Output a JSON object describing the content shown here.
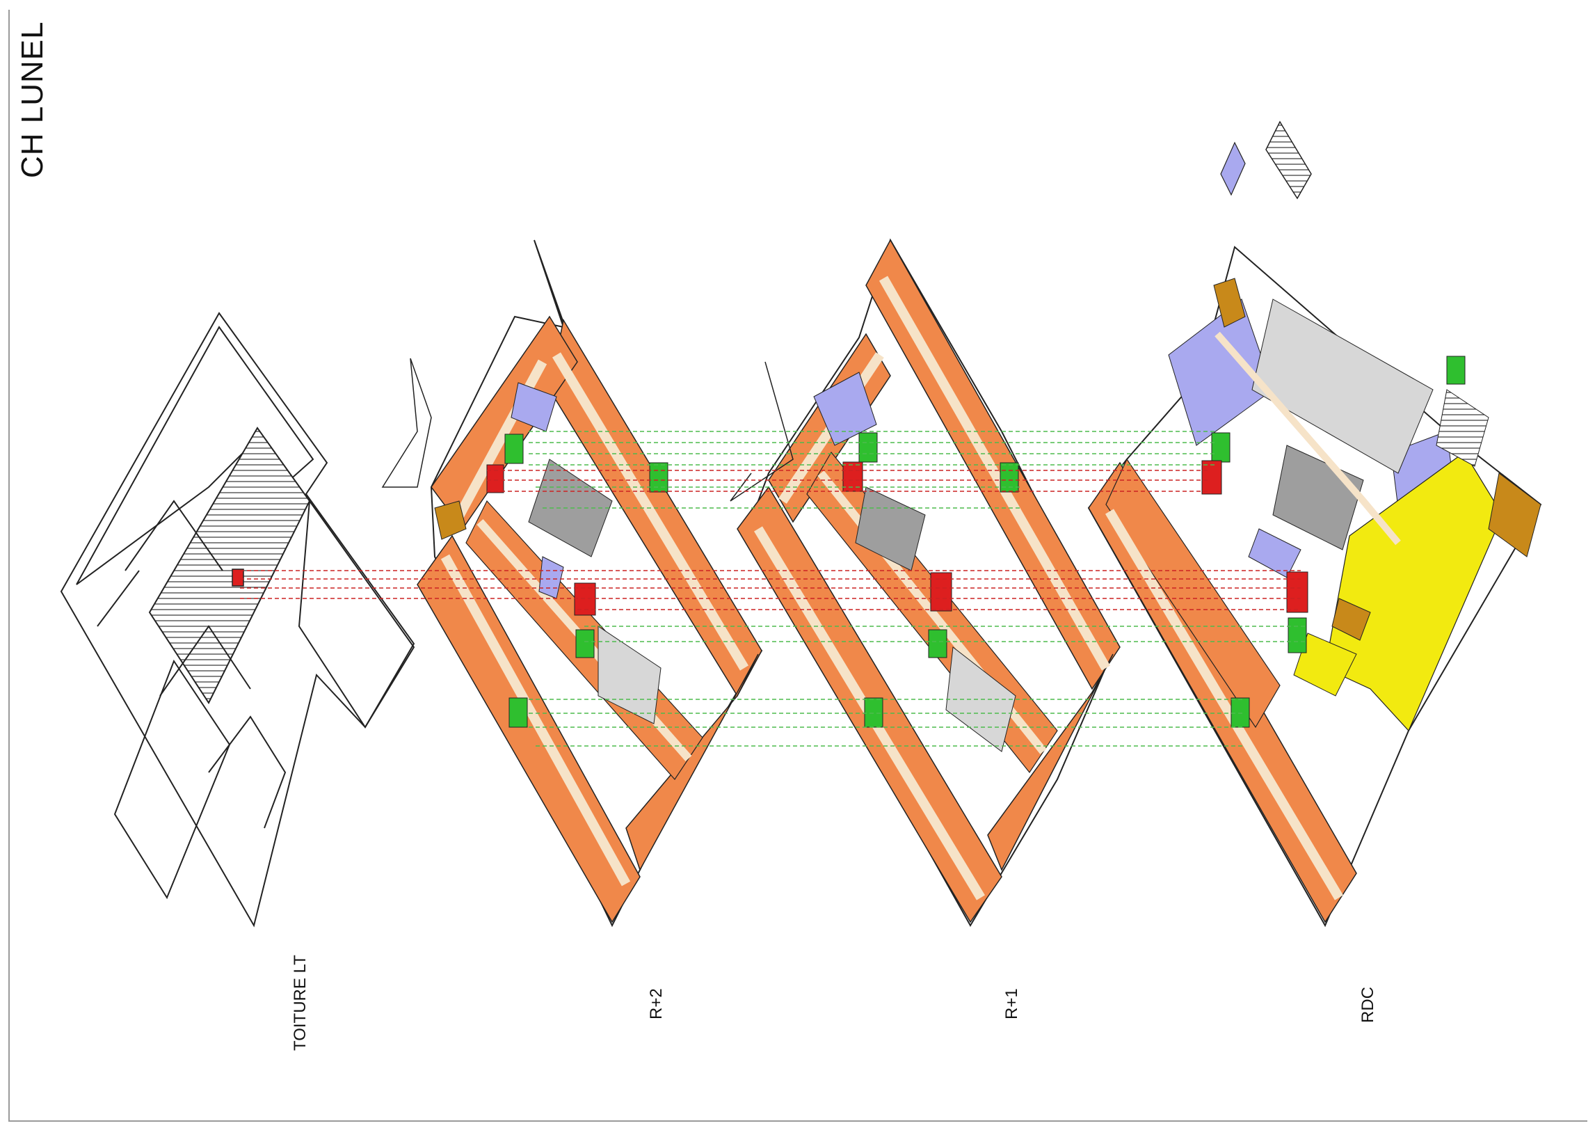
{
  "document": {
    "title": "CH LUNEL"
  },
  "levels": [
    {
      "id": "toiture",
      "label": "TOITURE LT"
    },
    {
      "id": "r2",
      "label": "R+2"
    },
    {
      "id": "r1",
      "label": "R+1"
    },
    {
      "id": "rdc",
      "label": "RDC"
    }
  ],
  "colors": {
    "rooms": "#f0884a",
    "corridor": "#f6e3c8",
    "services": "#a9a9ef",
    "technical": "#9e9e9e",
    "light_grey": "#d7d7d7",
    "yellow": "#f2ea10",
    "ochre": "#c8891a",
    "stair_green": "#2fbf2f",
    "stair_red": "#dd1f1f",
    "link_green": "#4dbb4d",
    "link_red": "#cc2222",
    "outline": "#222222"
  }
}
